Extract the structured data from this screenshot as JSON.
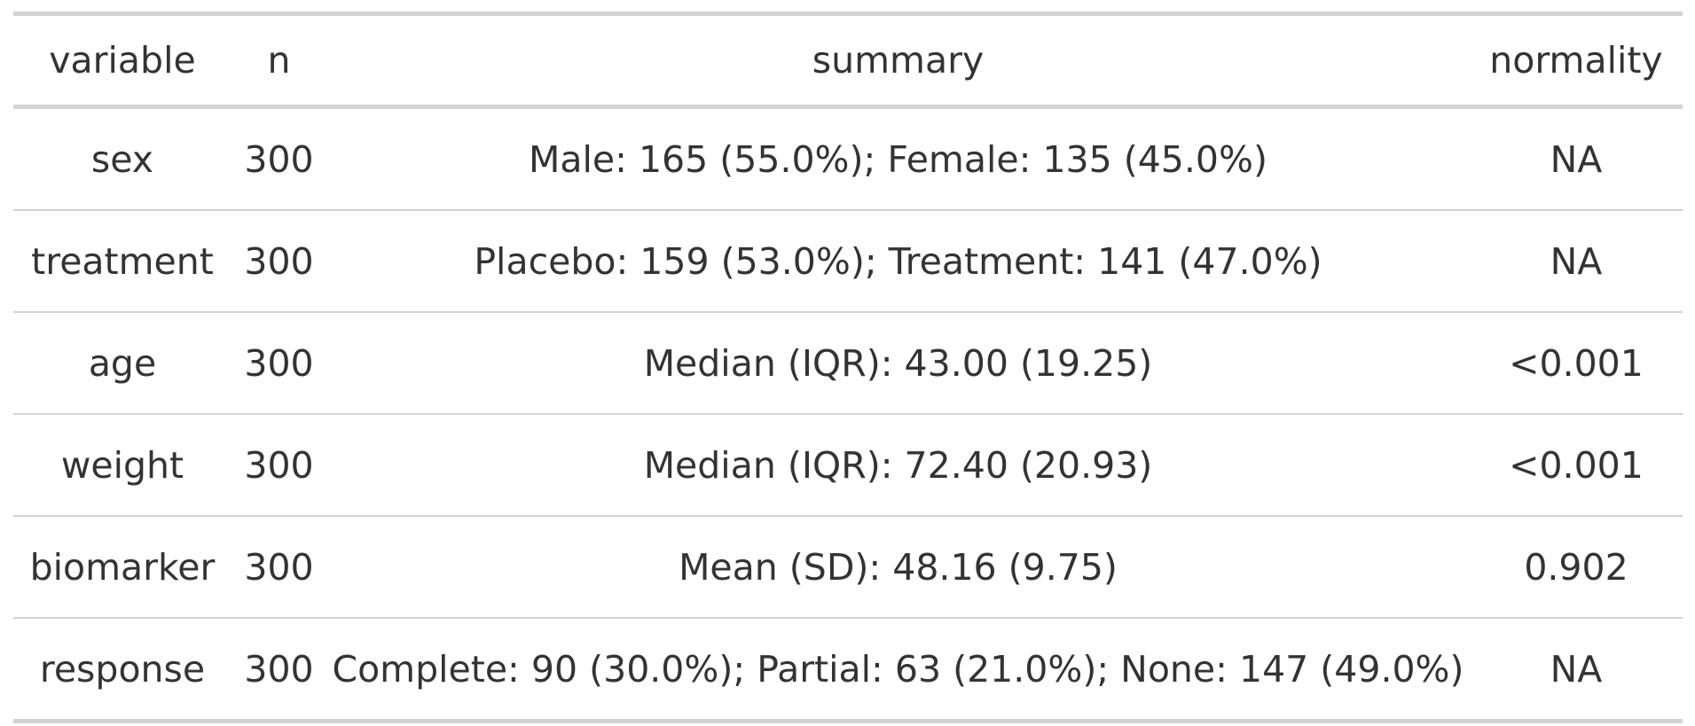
{
  "table": {
    "columns": [
      "variable",
      "n",
      "summary",
      "normality"
    ],
    "rows": [
      [
        "sex",
        "300",
        "Male: 165 (55.0%); Female: 135 (45.0%)",
        "NA"
      ],
      [
        "treatment",
        "300",
        "Placebo: 159 (53.0%); Treatment: 141 (47.0%)",
        "NA"
      ],
      [
        "age",
        "300",
        "Median (IQR): 43.00 (19.25)",
        "<0.001"
      ],
      [
        "weight",
        "300",
        "Median (IQR): 72.40 (20.93)",
        "<0.001"
      ],
      [
        "biomarker",
        "300",
        "Mean (SD): 48.16 (9.75)",
        "0.902"
      ],
      [
        "response",
        "300",
        "Complete: 90 (30.0%); Partial: 63 (21.0%); None: 147 (49.0%)",
        "NA"
      ]
    ]
  }
}
